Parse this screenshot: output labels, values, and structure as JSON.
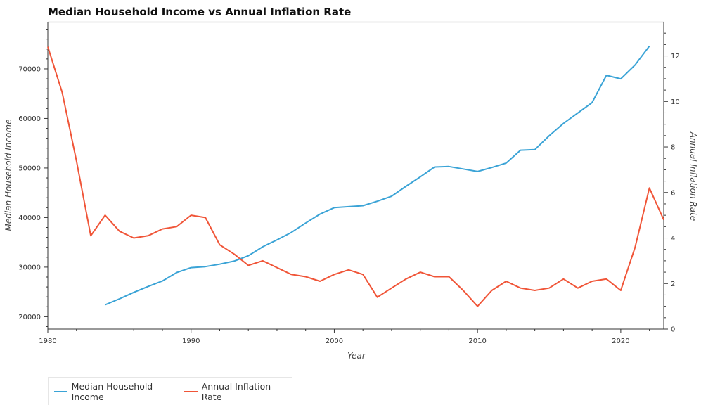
{
  "chart_data": {
    "type": "line",
    "title": "Median Household Income vs Annual Inflation Rate",
    "xlabel": "Year",
    "ylabel_left": "Median Household Income",
    "ylabel_right": "Annual Inflation Rate",
    "xlim": [
      1980,
      2023
    ],
    "ylim_left": [
      17500,
      79500
    ],
    "ylim_right": [
      0,
      13.5
    ],
    "x_ticks": [
      1980,
      1990,
      2000,
      2010,
      2020
    ],
    "y_left_ticks": [
      20000,
      30000,
      40000,
      50000,
      60000,
      70000
    ],
    "y_right_ticks": [
      0,
      2,
      4,
      6,
      8,
      10,
      12
    ],
    "legend_position": "bottom-left",
    "series": [
      {
        "name": "Median Household Income",
        "color": "#3aa3d6",
        "axis": "left",
        "x": [
          1984,
          1985,
          1986,
          1987,
          1988,
          1989,
          1990,
          1991,
          1992,
          1993,
          1994,
          1995,
          1996,
          1997,
          1998,
          1999,
          2000,
          2001,
          2002,
          2003,
          2004,
          2005,
          2006,
          2007,
          2008,
          2009,
          2010,
          2011,
          2012,
          2013,
          2014,
          2015,
          2016,
          2017,
          2018,
          2019,
          2020,
          2021,
          2022
        ],
        "y": [
          22400,
          23600,
          24900,
          26100,
          27200,
          28900,
          29900,
          30100,
          30600,
          31200,
          32300,
          34100,
          35500,
          37000,
          38900,
          40700,
          42000,
          42200,
          42400,
          43300,
          44300,
          46300,
          48200,
          50200,
          50300,
          49800,
          49300,
          50100,
          51000,
          53600,
          53700,
          56500,
          59000,
          61100,
          63200,
          68700,
          68000,
          70800,
          74600
        ]
      },
      {
        "name": "Annual Inflation Rate",
        "color": "#f05538",
        "axis": "right",
        "x": [
          1980,
          1981,
          1982,
          1983,
          1984,
          1985,
          1986,
          1987,
          1988,
          1989,
          1990,
          1991,
          1992,
          1993,
          1994,
          1995,
          1996,
          1997,
          1998,
          1999,
          2000,
          2001,
          2002,
          2003,
          2004,
          2005,
          2006,
          2007,
          2008,
          2009,
          2010,
          2011,
          2012,
          2013,
          2014,
          2015,
          2016,
          2017,
          2018,
          2019,
          2020,
          2021,
          2022,
          2023
        ],
        "y": [
          12.4,
          10.4,
          7.4,
          4.1,
          5.0,
          4.3,
          4.0,
          4.1,
          4.4,
          4.5,
          5.0,
          4.9,
          3.7,
          3.3,
          2.8,
          3.0,
          2.7,
          2.4,
          2.3,
          2.1,
          2.4,
          2.6,
          2.4,
          1.4,
          1.8,
          2.2,
          2.5,
          2.3,
          2.3,
          1.7,
          1.0,
          1.7,
          2.1,
          1.8,
          1.7,
          1.8,
          2.2,
          1.8,
          2.1,
          2.2,
          1.7,
          3.6,
          6.2,
          4.8
        ]
      }
    ]
  }
}
